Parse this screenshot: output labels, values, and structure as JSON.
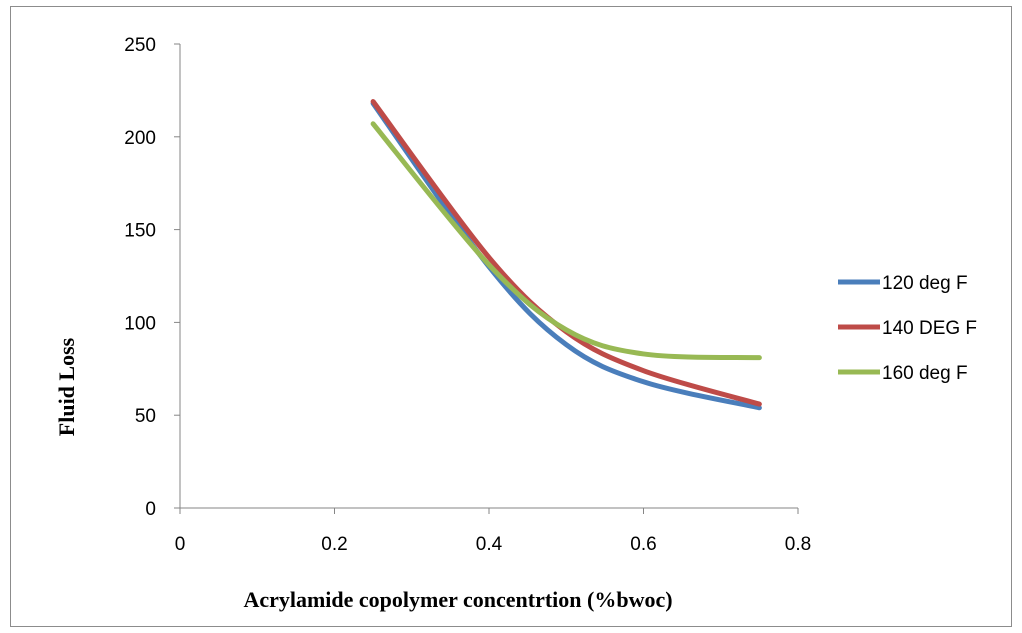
{
  "chart_data": {
    "type": "line",
    "title": "",
    "xlabel": "Acrylamide copolymer concentrtion (%bwoc)",
    "ylabel": "Fluid Loss",
    "xlim": [
      0,
      0.8
    ],
    "ylim": [
      0,
      250
    ],
    "xticks": [
      0,
      0.2,
      0.4,
      0.6,
      0.8
    ],
    "xtick_labels": [
      "0",
      "0.2",
      "0.4",
      "0.6",
      "0.8"
    ],
    "yticks": [
      0,
      50,
      100,
      150,
      200,
      250
    ],
    "ytick_labels": [
      "0",
      "50",
      "100",
      "150",
      "200",
      "250"
    ],
    "grid": false,
    "legend_position": "right",
    "x": [
      0.25,
      0.4,
      0.5,
      0.6,
      0.75
    ],
    "series": [
      {
        "name": "120 deg F",
        "color": "#4a7ebb",
        "values": [
          218,
          130,
          88,
          68,
          54
        ]
      },
      {
        "name": "140 DEG F",
        "color": "#be4b48",
        "values": [
          219,
          135,
          95,
          74,
          56
        ]
      },
      {
        "name": "160 deg F",
        "color": "#98b954",
        "values": [
          207,
          131,
          96,
          83,
          81
        ]
      }
    ]
  }
}
